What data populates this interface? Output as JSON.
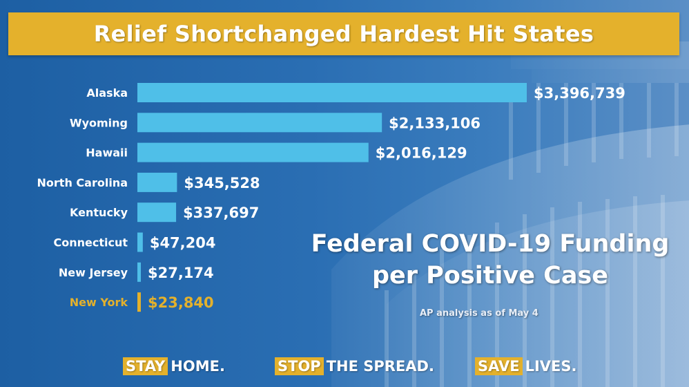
{
  "header": {
    "title": "Relief Shortchanged Hardest Hit States"
  },
  "chart_data": {
    "type": "bar",
    "orientation": "horizontal",
    "categories": [
      "Alaska",
      "Wyoming",
      "Hawaii",
      "North Carolina",
      "Kentucky",
      "Connecticut",
      "New Jersey",
      "New York"
    ],
    "values": [
      3396739,
      2133106,
      2016129,
      345528,
      337697,
      47204,
      27174,
      23840
    ],
    "data_labels": [
      "$3,396,739",
      "$2,133,106",
      "$2,016,129",
      "$345,528",
      "$337,697",
      "$47,204",
      "$27,174",
      "$23,840"
    ],
    "highlight_category": "New York",
    "title": "Federal COVID-19 Funding per Positive Case",
    "note": "AP analysis as of May 4",
    "bar_color": "#4fbfe8",
    "highlight_color": "#e4b12c",
    "grid": false
  },
  "footer": {
    "items": [
      {
        "highlight": "STAY",
        "rest": "HOME."
      },
      {
        "highlight": "STOP",
        "rest": "THE SPREAD."
      },
      {
        "highlight": "SAVE",
        "rest": "LIVES."
      }
    ]
  },
  "colors": {
    "accent": "#e4b12c",
    "background": "#2a6eb3",
    "bar": "#4fbfe8",
    "text": "#ffffff"
  }
}
